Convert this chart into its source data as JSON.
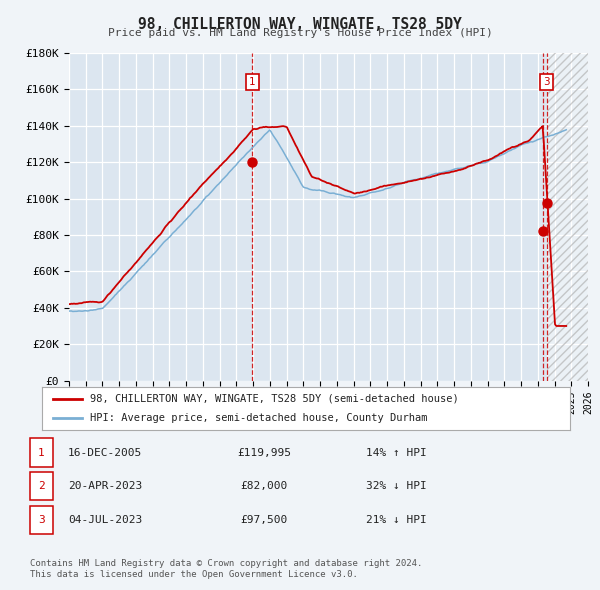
{
  "title": "98, CHILLERTON WAY, WINGATE, TS28 5DY",
  "subtitle": "Price paid vs. HM Land Registry's House Price Index (HPI)",
  "background_color": "#f0f4f8",
  "plot_bg_color": "#dce6f0",
  "xmin": 1995,
  "xmax": 2026,
  "ymin": 0,
  "ymax": 180000,
  "yticks": [
    0,
    20000,
    40000,
    60000,
    80000,
    100000,
    120000,
    140000,
    160000,
    180000
  ],
  "ytick_labels": [
    "£0",
    "£20K",
    "£40K",
    "£60K",
    "£80K",
    "£100K",
    "£120K",
    "£140K",
    "£160K",
    "£180K"
  ],
  "red_line_color": "#cc0000",
  "blue_line_color": "#7aafd4",
  "vline_color": "#cc0000",
  "hatch_start": 2023.58,
  "legend_label_red": "98, CHILLERTON WAY, WINGATE, TS28 5DY (semi-detached house)",
  "legend_label_blue": "HPI: Average price, semi-detached house, County Durham",
  "table_rows": [
    {
      "num": "1",
      "date": "16-DEC-2005",
      "price": "£119,995",
      "hpi": "14% ↑ HPI"
    },
    {
      "num": "2",
      "date": "20-APR-2023",
      "price": "£82,000",
      "hpi": "32% ↓ HPI"
    },
    {
      "num": "3",
      "date": "04-JUL-2023",
      "price": "£97,500",
      "hpi": "21% ↓ HPI"
    }
  ],
  "footer_line1": "Contains HM Land Registry data © Crown copyright and database right 2024.",
  "footer_line2": "This data is licensed under the Open Government Licence v3.0."
}
